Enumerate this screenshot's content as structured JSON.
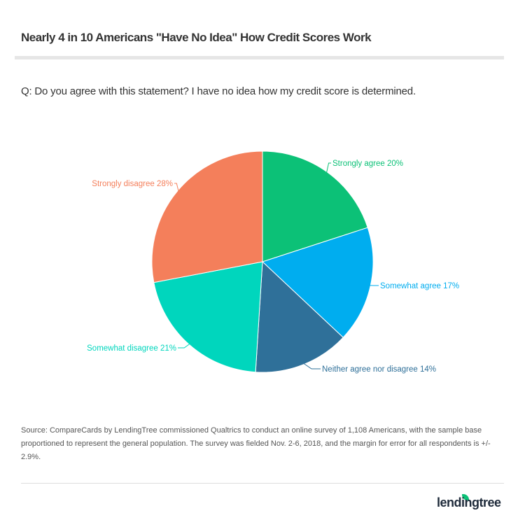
{
  "title": "Nearly 4 in 10 Americans \"Have No Idea\" How Credit Scores Work",
  "question": "Q: Do you agree with this statement? I have no idea how my credit score is determined.",
  "source": "Source: CompareCards by LendingTree commissioned Qualtrics to conduct an online survey of 1,108 Americans, with the sample base proportioned to represent the general population. The survey was fielded Nov. 2-6, 2018, and the margin for error for all respondents is +/- 2.9%.",
  "logo": "lendingtree",
  "chart_data": {
    "type": "pie",
    "start": "top",
    "direction": "clockwise",
    "slices": [
      {
        "label": "Strongly agree 20%",
        "value": 20,
        "color": "#0cc177"
      },
      {
        "label": "Somewhat agree 17%",
        "value": 17,
        "color": "#00adef"
      },
      {
        "label": "Neither agree nor disagree 14%",
        "value": 14,
        "color": "#2f7099"
      },
      {
        "label": "Somewhat disagree 21%",
        "value": 21,
        "color": "#00d6bd"
      },
      {
        "label": "Strongly disagree 28%",
        "value": 28,
        "color": "#f47f5b"
      }
    ]
  }
}
